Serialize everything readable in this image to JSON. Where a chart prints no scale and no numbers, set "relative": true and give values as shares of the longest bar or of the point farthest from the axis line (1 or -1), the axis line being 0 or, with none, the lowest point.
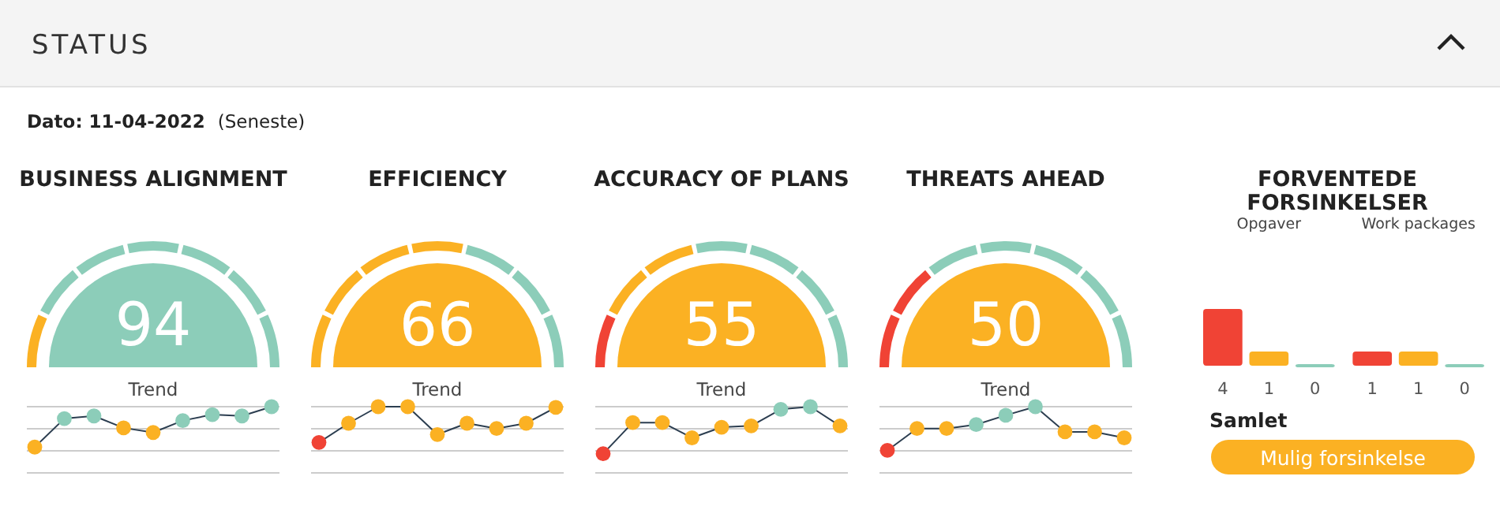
{
  "chart_data": [
    {
      "type": "other",
      "title": "STATUS",
      "subtitle": "Dato: 11-04-2022",
      "annotations": [
        "(Seneste)"
      ]
    },
    {
      "type": "other",
      "title": "BUSINESS ALIGNMENT",
      "annotations": [
        "94"
      ],
      "color": "#8ccdb9"
    },
    {
      "type": "line",
      "title": "Trend",
      "relative": true,
      "marker": "circle",
      "categories": [
        null,
        null,
        null,
        null,
        null,
        null,
        null,
        null,
        null
      ],
      "ref_lines": [
        {
          "axis": "y",
          "value": 0.333,
          "color": "#cccccc"
        },
        {
          "axis": "y",
          "value": 0.667,
          "color": "#cccccc"
        },
        {
          "axis": "y",
          "value": 1,
          "color": "#cccccc"
        }
      ],
      "series": [
        {
          "color": "#2c3e50",
          "values": [
            0.39,
            0.82,
            0.86,
            0.68,
            0.61,
            0.79,
            0.88,
            0.86,
            1
          ],
          "colors": [
            "#fbb123",
            "#8ccdb9",
            "#8ccdb9",
            "#fbb123",
            "#fbb123",
            "#8ccdb9",
            "#8ccdb9",
            "#8ccdb9",
            "#8ccdb9"
          ]
        }
      ]
    },
    {
      "type": "other",
      "title": "EFFICIENCY",
      "annotations": [
        "66"
      ],
      "color": "#fbb123"
    },
    {
      "type": "line",
      "title": "Trend",
      "relative": true,
      "marker": "circle",
      "categories": [
        null,
        null,
        null,
        null,
        null,
        null,
        null,
        null,
        null
      ],
      "ref_lines": [
        {
          "axis": "y",
          "value": 0.333,
          "color": "#cccccc"
        },
        {
          "axis": "y",
          "value": 0.667,
          "color": "#cccccc"
        },
        {
          "axis": "y",
          "value": 1,
          "color": "#cccccc"
        }
      ],
      "series": [
        {
          "color": "#2c3e50",
          "values": [
            0.46,
            0.75,
            1,
            1,
            0.58,
            0.75,
            0.67,
            0.75,
            0.99
          ],
          "colors": [
            "#f04335",
            "#fbb123",
            "#fbb123",
            "#fbb123",
            "#fbb123",
            "#fbb123",
            "#fbb123",
            "#fbb123",
            "#fbb123"
          ]
        }
      ]
    },
    {
      "type": "other",
      "title": "ACCURACY OF PLANS",
      "annotations": [
        "55"
      ],
      "color": "#fbb123"
    },
    {
      "type": "line",
      "title": "Trend",
      "relative": true,
      "marker": "circle",
      "categories": [
        null,
        null,
        null,
        null,
        null,
        null,
        null,
        null,
        null
      ],
      "ref_lines": [
        {
          "axis": "y",
          "value": 0.333,
          "color": "#cccccc"
        },
        {
          "axis": "y",
          "value": 0.667,
          "color": "#cccccc"
        },
        {
          "axis": "y",
          "value": 1,
          "color": "#cccccc"
        }
      ],
      "series": [
        {
          "color": "#2c3e50",
          "values": [
            0.29,
            0.76,
            0.76,
            0.53,
            0.69,
            0.71,
            0.96,
            1,
            0.71
          ],
          "colors": [
            "#f04335",
            "#fbb123",
            "#fbb123",
            "#fbb123",
            "#fbb123",
            "#fbb123",
            "#8ccdb9",
            "#8ccdb9",
            "#fbb123"
          ]
        }
      ]
    },
    {
      "type": "other",
      "title": "THREATS AHEAD",
      "annotations": [
        "50"
      ],
      "color": "#fbb123"
    },
    {
      "type": "line",
      "title": "Trend",
      "relative": true,
      "marker": "circle",
      "categories": [
        null,
        null,
        null,
        null,
        null,
        null,
        null,
        null,
        null
      ],
      "ref_lines": [
        {
          "axis": "y",
          "value": 0.333,
          "color": "#cccccc"
        },
        {
          "axis": "y",
          "value": 0.667,
          "color": "#cccccc"
        },
        {
          "axis": "y",
          "value": 1,
          "color": "#cccccc"
        }
      ],
      "series": [
        {
          "color": "#2c3e50",
          "values": [
            0.34,
            0.67,
            0.67,
            0.73,
            0.87,
            1,
            0.62,
            0.62,
            0.53
          ],
          "colors": [
            "#f04335",
            "#fbb123",
            "#fbb123",
            "#8ccdb9",
            "#8ccdb9",
            "#8ccdb9",
            "#fbb123",
            "#fbb123",
            "#fbb123"
          ]
        }
      ]
    },
    {
      "type": "bar",
      "title": "FORVENTEDE FORSINKELSER",
      "categories": [
        "Opgaver",
        "Work packages"
      ],
      "data_labels": true,
      "series": [
        {
          "color": "#f04335",
          "values": [
            4,
            1
          ]
        },
        {
          "color": "#fbb123",
          "values": [
            1,
            1
          ]
        },
        {
          "color": "#8ccdb9",
          "values": [
            0,
            0
          ]
        }
      ],
      "annotations": [
        "Samlet",
        "Mulig forsinkelse"
      ]
    }
  ]
}
